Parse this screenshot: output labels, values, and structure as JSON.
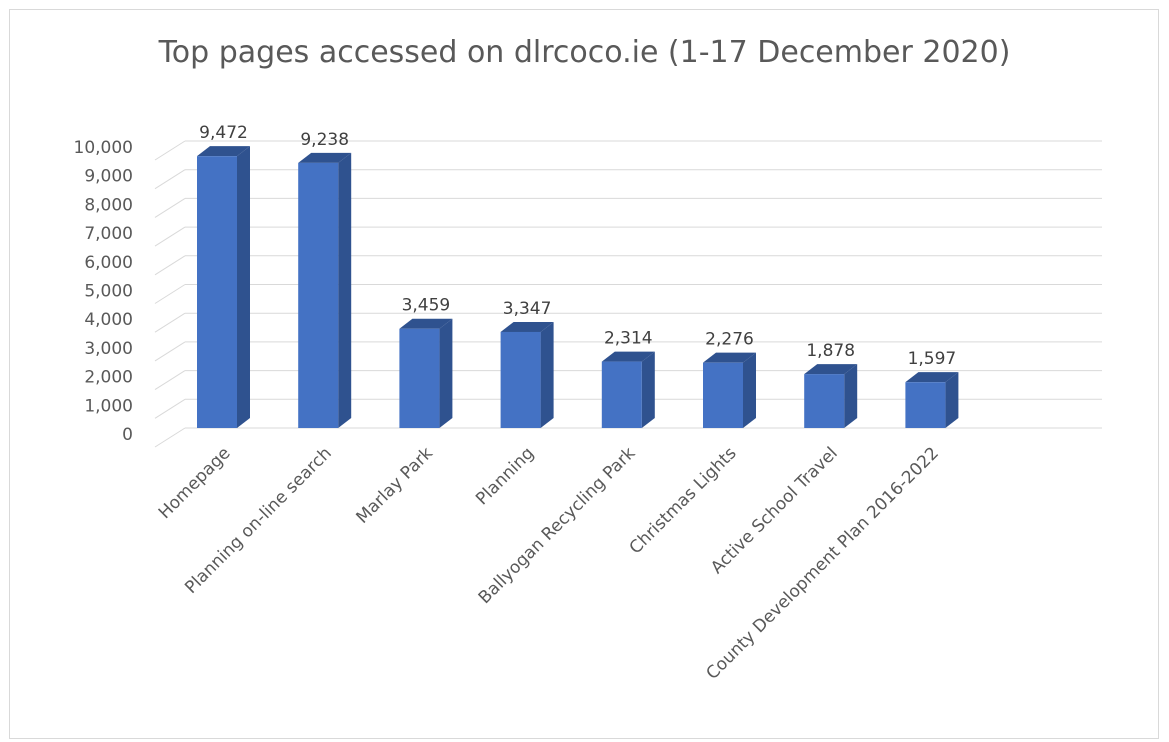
{
  "chart_data": {
    "type": "bar",
    "style": "3d-column",
    "title": "Top pages accessed on dlrcoco.ie (1-17 December 2020)",
    "xlabel": "",
    "ylabel": "",
    "ylim": [
      0,
      10000
    ],
    "yticks": [
      0,
      1000,
      2000,
      3000,
      4000,
      5000,
      6000,
      7000,
      8000,
      9000,
      10000
    ],
    "ytick_labels": [
      "0",
      "1,000",
      "2,000",
      "3,000",
      "4,000",
      "5,000",
      "6,000",
      "7,000",
      "8,000",
      "9,000",
      "10,000"
    ],
    "categories": [
      "Homepage",
      "Planning on-line search",
      "Marlay Park",
      "Planning",
      "Ballyogan Recycling Park",
      "Christmas Lights",
      "Active School Travel",
      "County Development Plan 2016-2022"
    ],
    "values": [
      9472,
      9238,
      3459,
      3347,
      2314,
      2276,
      1878,
      1597
    ],
    "data_labels": [
      "9,472",
      "9,238",
      "3,459",
      "3,347",
      "2,314",
      "2,276",
      "1,878",
      "1,597"
    ],
    "grid": true,
    "legend": "none",
    "colors": {
      "bar_front": "#4472c4",
      "bar_side": "#2f528f",
      "bar_top": "#2f528f",
      "grid": "#d9d9d9",
      "text": "#595959"
    }
  }
}
